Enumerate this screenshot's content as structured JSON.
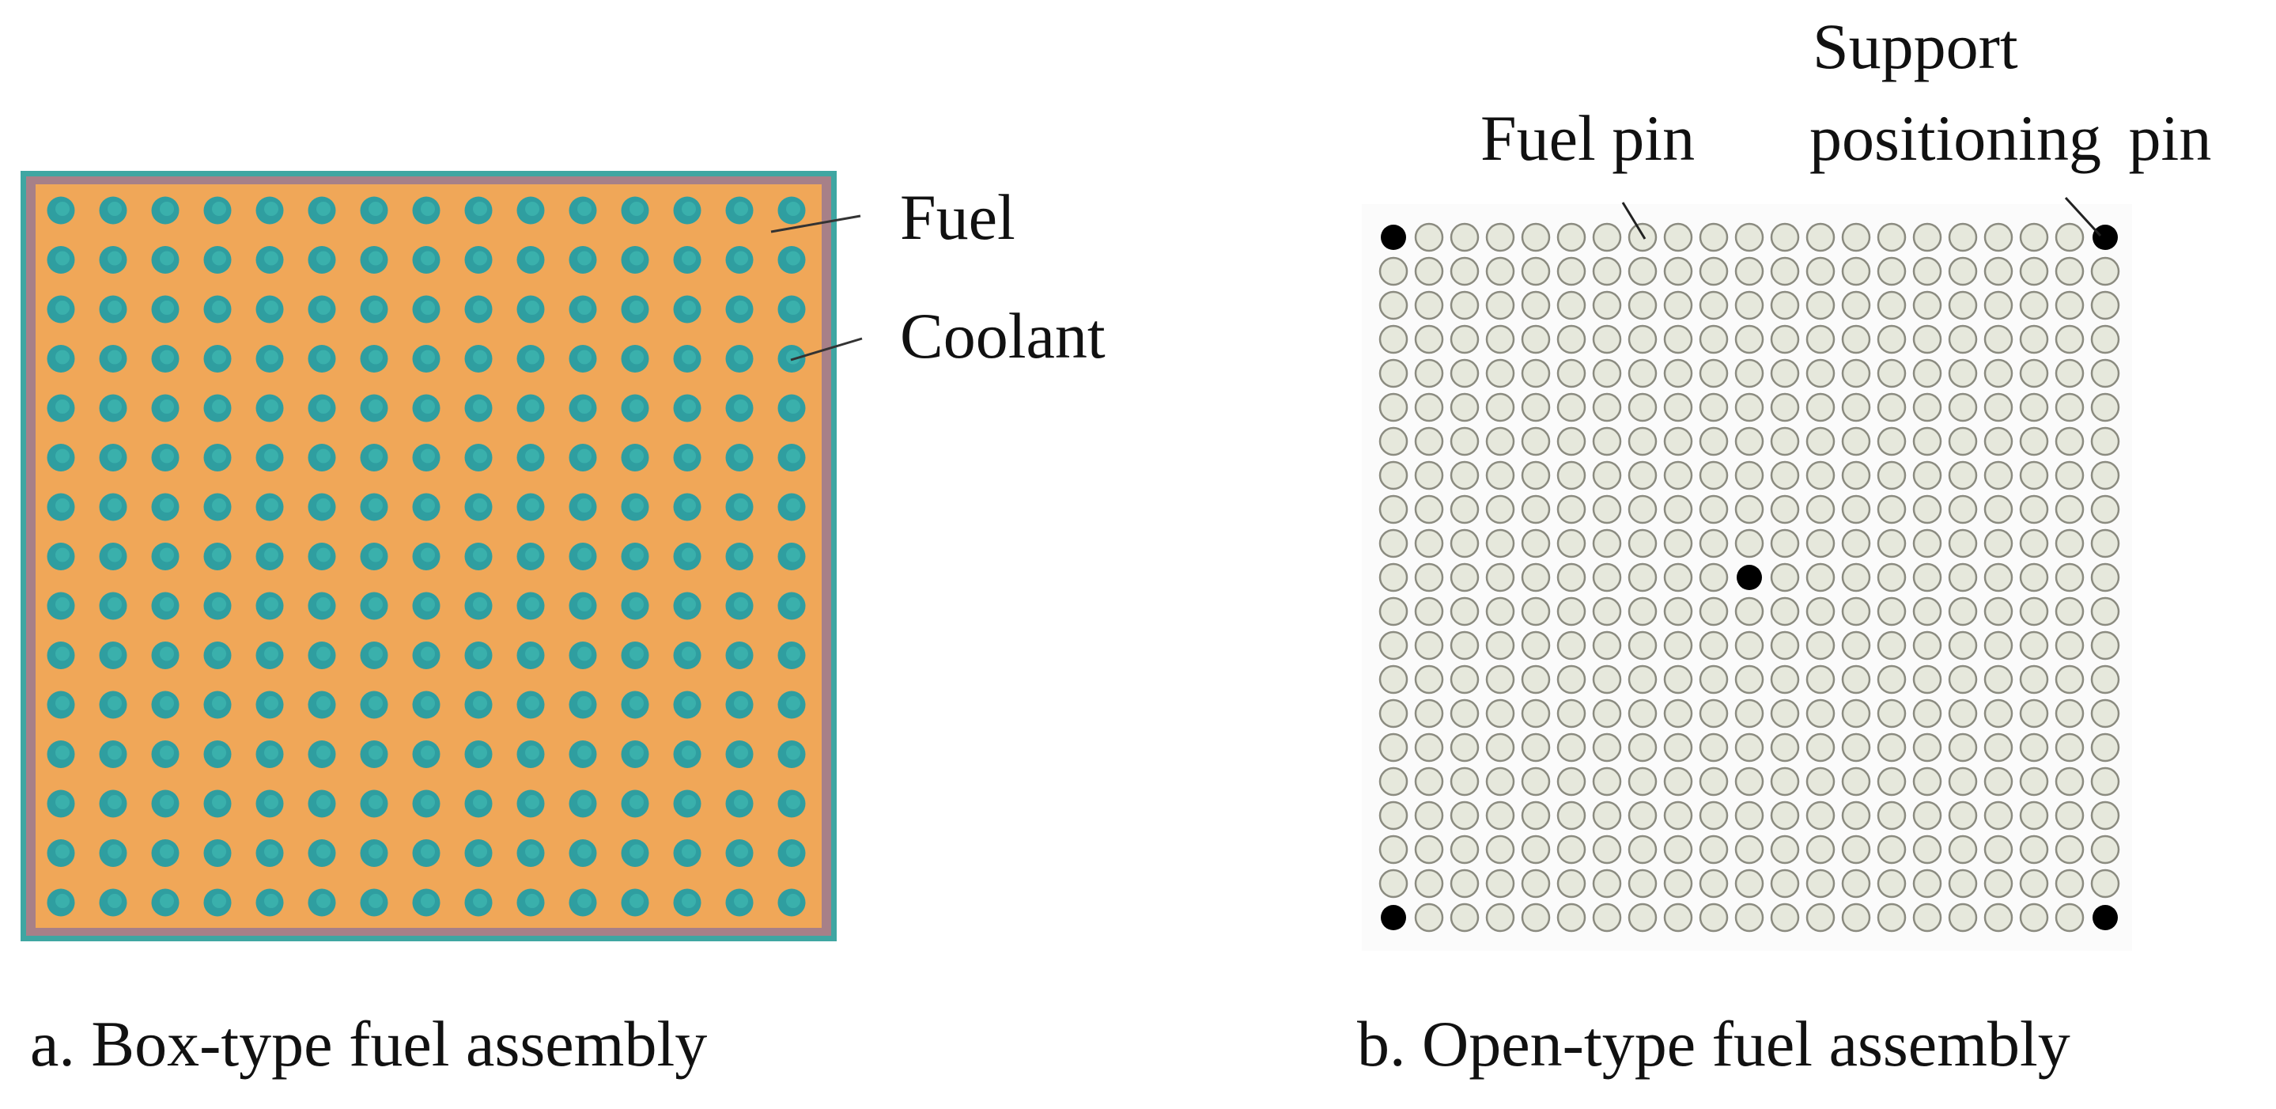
{
  "panel_a": {
    "caption": "a. Box-type fuel assembly",
    "labels": {
      "fuel": "Fuel",
      "coolant": "Coolant"
    },
    "grid": {
      "rows": 15,
      "cols": 15
    },
    "colors": {
      "outer_border": "#3fa6a2",
      "inner_border": "#a78088",
      "coolant": "#f0a758",
      "fuel": "#2f9ea0",
      "fuel_core": "#3ab0ac"
    }
  },
  "panel_b": {
    "caption": "b. Open-type fuel assembly",
    "labels": {
      "fuel_pin": "Fuel pin",
      "support_line1": "Support",
      "support_line2": "positioning pin"
    },
    "grid": {
      "rows": 21,
      "cols": 21
    },
    "support_pins": [
      [
        0,
        0
      ],
      [
        0,
        20
      ],
      [
        20,
        0
      ],
      [
        20,
        20
      ],
      [
        10,
        10
      ]
    ],
    "colors": {
      "fuel_pin_fill": "#e6e8dc",
      "fuel_pin_stroke": "#8b8b80",
      "support_pin": "#000000"
    }
  }
}
